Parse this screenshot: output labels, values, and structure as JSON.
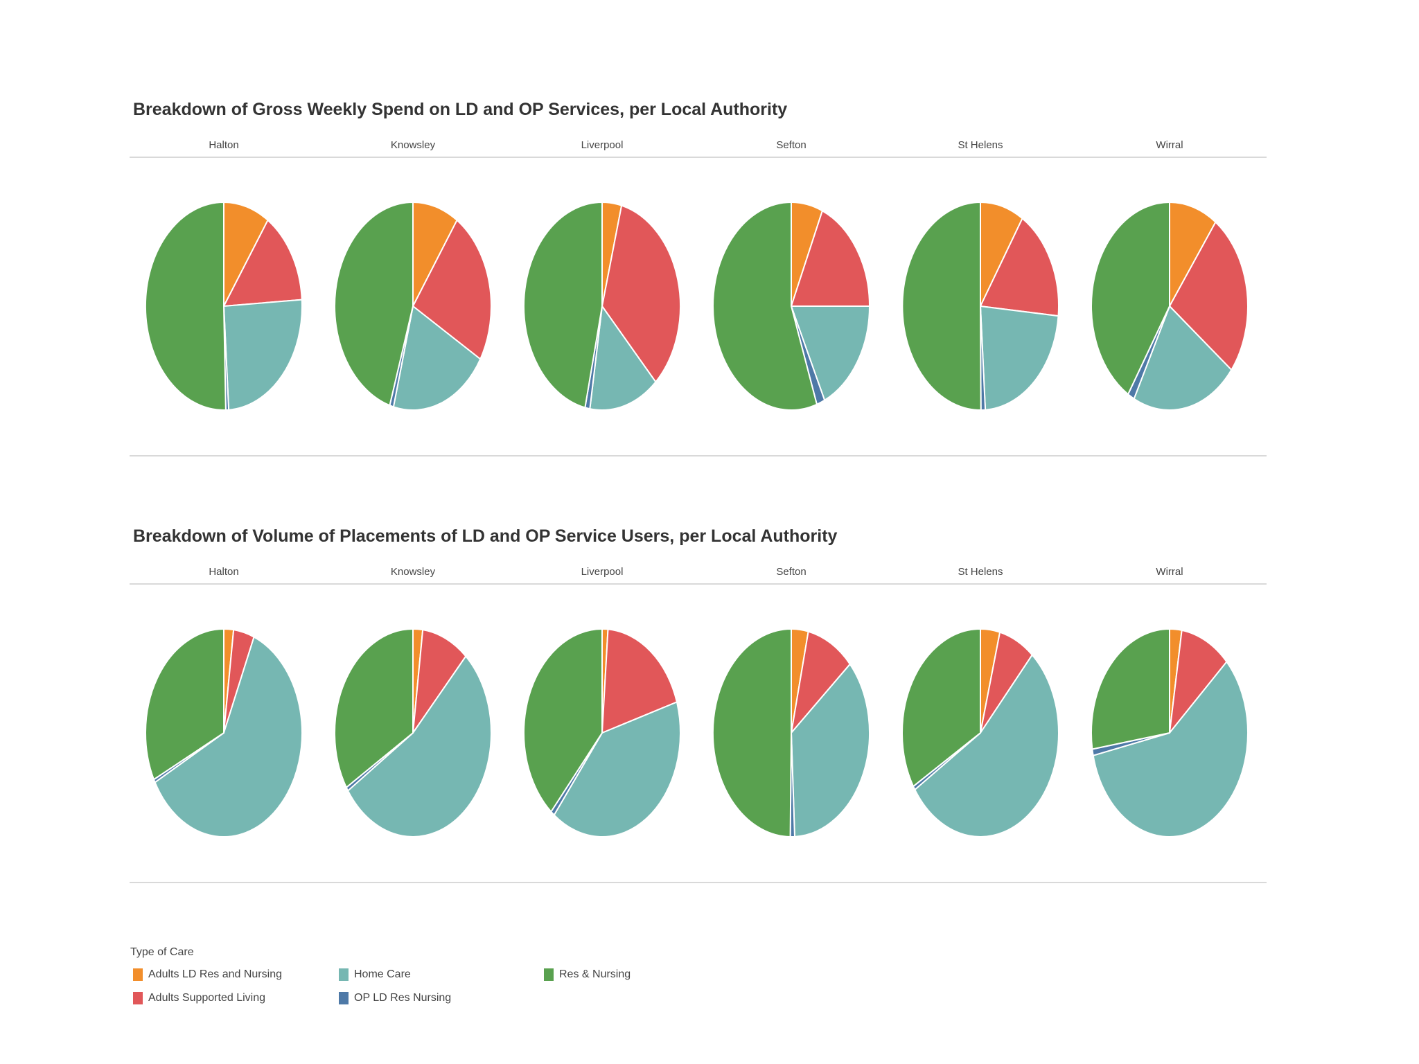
{
  "colors": {
    "Adults LD Res and Nursing": "#F28E2B",
    "Adults Supported Living": "#E15759",
    "Home Care": "#76B7B2",
    "OP LD Res Nursing": "#4E79A7",
    "Res & Nursing": "#59A14F"
  },
  "legend": {
    "title": "Type of Care",
    "items": [
      "Adults LD Res and Nursing",
      "Adults Supported Living",
      "Home Care",
      "OP LD Res Nursing",
      "Res & Nursing"
    ]
  },
  "chart_data": [
    {
      "type": "pie",
      "title": "Breakdown of Gross Weekly Spend on LD and OP Services, per Local Authority",
      "categories": [
        "Adults LD Res and Nursing",
        "Adults Supported Living",
        "Home Care",
        "OP LD Res Nursing",
        "Res & Nursing"
      ],
      "local_authorities": [
        "Halton",
        "Knowsley",
        "Liverpool",
        "Sefton",
        "St Helens",
        "Wirral"
      ],
      "series": [
        {
          "name": "Halton",
          "values": [
            9.5,
            14.5,
            25,
            0.6,
            50.4
          ]
        },
        {
          "name": "Knowsley",
          "values": [
            9.5,
            24,
            20.5,
            0.8,
            45.2
          ]
        },
        {
          "name": "Liverpool",
          "values": [
            4,
            34,
            14.5,
            1,
            46.5
          ]
        },
        {
          "name": "Sefton",
          "values": [
            6.5,
            18.5,
            18,
            1.7,
            55.3
          ]
        },
        {
          "name": "St Helens",
          "values": [
            9,
            17.5,
            22.5,
            0.9,
            50.1
          ]
        },
        {
          "name": "Wirral",
          "values": [
            10,
            25.5,
            22,
            1.4,
            41.1
          ]
        }
      ]
    },
    {
      "type": "pie",
      "title": "Breakdown of Volume of Placements of LD and OP Service Users, per Local Authority",
      "categories": [
        "Adults LD Res and Nursing",
        "Adults Supported Living",
        "Home Care",
        "OP LD Res Nursing",
        "Res & Nursing"
      ],
      "local_authorities": [
        "Halton",
        "Knowsley",
        "Liverpool",
        "Sefton",
        "St Helens",
        "Wirral"
      ],
      "series": [
        {
          "name": "Halton",
          "values": [
            2,
            4.3,
            60.8,
            0.5,
            32.4
          ]
        },
        {
          "name": "Knowsley",
          "values": [
            2,
            9.8,
            53.8,
            0.6,
            33.8
          ]
        },
        {
          "name": "Liverpool",
          "values": [
            1.2,
            19,
            40.3,
            0.8,
            38.7
          ]
        },
        {
          "name": "Sefton",
          "values": [
            3.5,
            10,
            35.8,
            0.9,
            49.8
          ]
        },
        {
          "name": "St Helens",
          "values": [
            4,
            7.5,
            54.3,
            0.6,
            33.6
          ]
        },
        {
          "name": "Wirral",
          "values": [
            2.5,
            10.5,
            58.5,
            1,
            27.5
          ]
        }
      ]
    }
  ]
}
